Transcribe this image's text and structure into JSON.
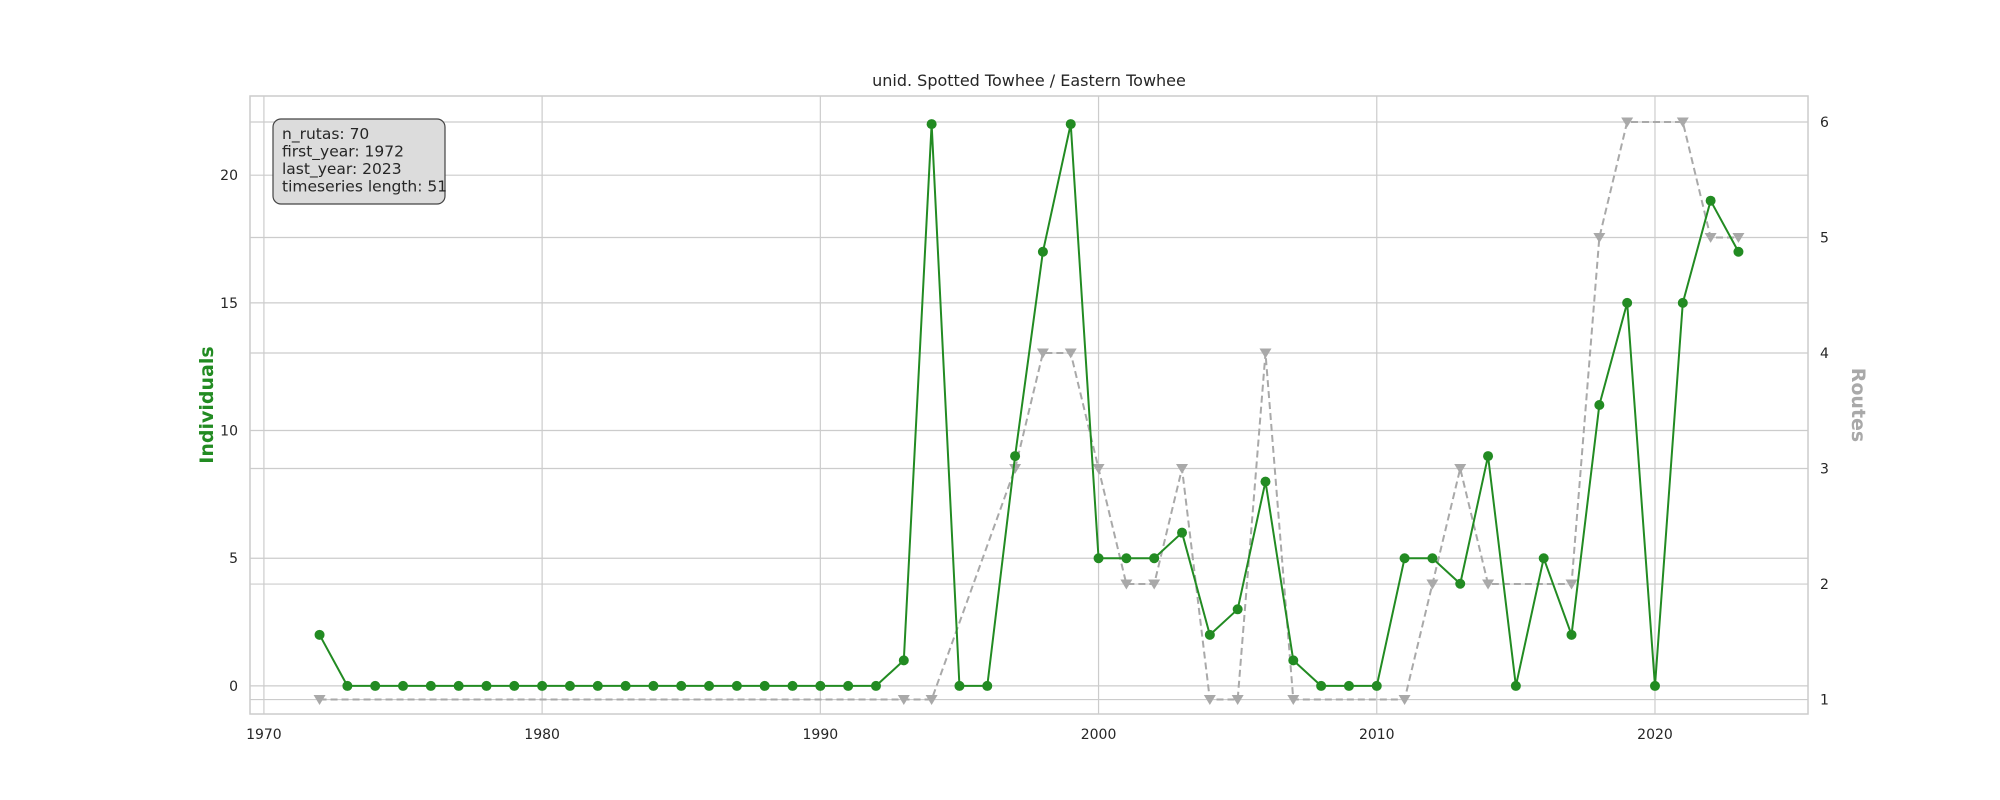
{
  "chart_data": {
    "type": "line",
    "title": "unid. Spotted Towhee / Eastern Towhee",
    "x_ticks": [
      1970,
      1980,
      1990,
      2000,
      2010,
      2020
    ],
    "xlim": [
      1969.5,
      2025.5
    ],
    "ylabel_left": "Individuals",
    "ylabel_right": "Routes",
    "ylim_left": [
      -1.1,
      23.1
    ],
    "yticks_left": [
      0,
      5,
      10,
      15,
      20
    ],
    "ylim_right": [
      0.875,
      6.225
    ],
    "yticks_right": [
      1,
      2,
      3,
      4,
      5,
      6
    ],
    "grid": true,
    "info_box": {
      "lines": [
        "n_rutas: 70",
        "first_year: 1972",
        "last_year: 2023",
        "timeseries length: 51"
      ],
      "placement": "top-left"
    },
    "series": [
      {
        "axis": "left",
        "color": "#228B22",
        "marker": "circle",
        "linestyle": "solid",
        "x": [
          1972,
          1973,
          1974,
          1975,
          1976,
          1977,
          1978,
          1979,
          1980,
          1981,
          1982,
          1983,
          1984,
          1985,
          1986,
          1987,
          1988,
          1989,
          1990,
          1991,
          1992,
          1993,
          1994,
          1995,
          1996,
          1997,
          1998,
          1999,
          2000,
          2001,
          2002,
          2003,
          2004,
          2005,
          2006,
          2007,
          2008,
          2009,
          2010,
          2011,
          2012,
          2013,
          2014,
          2015,
          2016,
          2017,
          2018,
          2019,
          2020,
          2021,
          2022,
          2023
        ],
        "values": [
          2,
          0,
          0,
          0,
          0,
          0,
          0,
          0,
          0,
          0,
          0,
          0,
          0,
          0,
          0,
          0,
          0,
          0,
          0,
          0,
          0,
          1,
          22,
          0,
          0,
          9,
          17,
          22,
          5,
          5,
          5,
          6,
          2,
          3,
          8,
          1,
          0,
          0,
          0,
          5,
          5,
          4,
          9,
          0,
          5,
          2,
          11,
          15,
          0,
          15,
          19,
          17
        ]
      },
      {
        "axis": "right",
        "color": "#A9A9A9",
        "marker": "triangle-down",
        "linestyle": "dashed",
        "x": [
          1972,
          1993,
          1994,
          1997,
          1998,
          1999,
          2000,
          2001,
          2002,
          2003,
          2004,
          2005,
          2006,
          2007,
          2011,
          2012,
          2013,
          2014,
          2017,
          2018,
          2019,
          2021,
          2022,
          2023
        ],
        "values": [
          1,
          1,
          1,
          3,
          4,
          4,
          3,
          2,
          2,
          3,
          1,
          1,
          4,
          1,
          1,
          2,
          3,
          2,
          2,
          5,
          6,
          6,
          5,
          5
        ]
      }
    ]
  }
}
